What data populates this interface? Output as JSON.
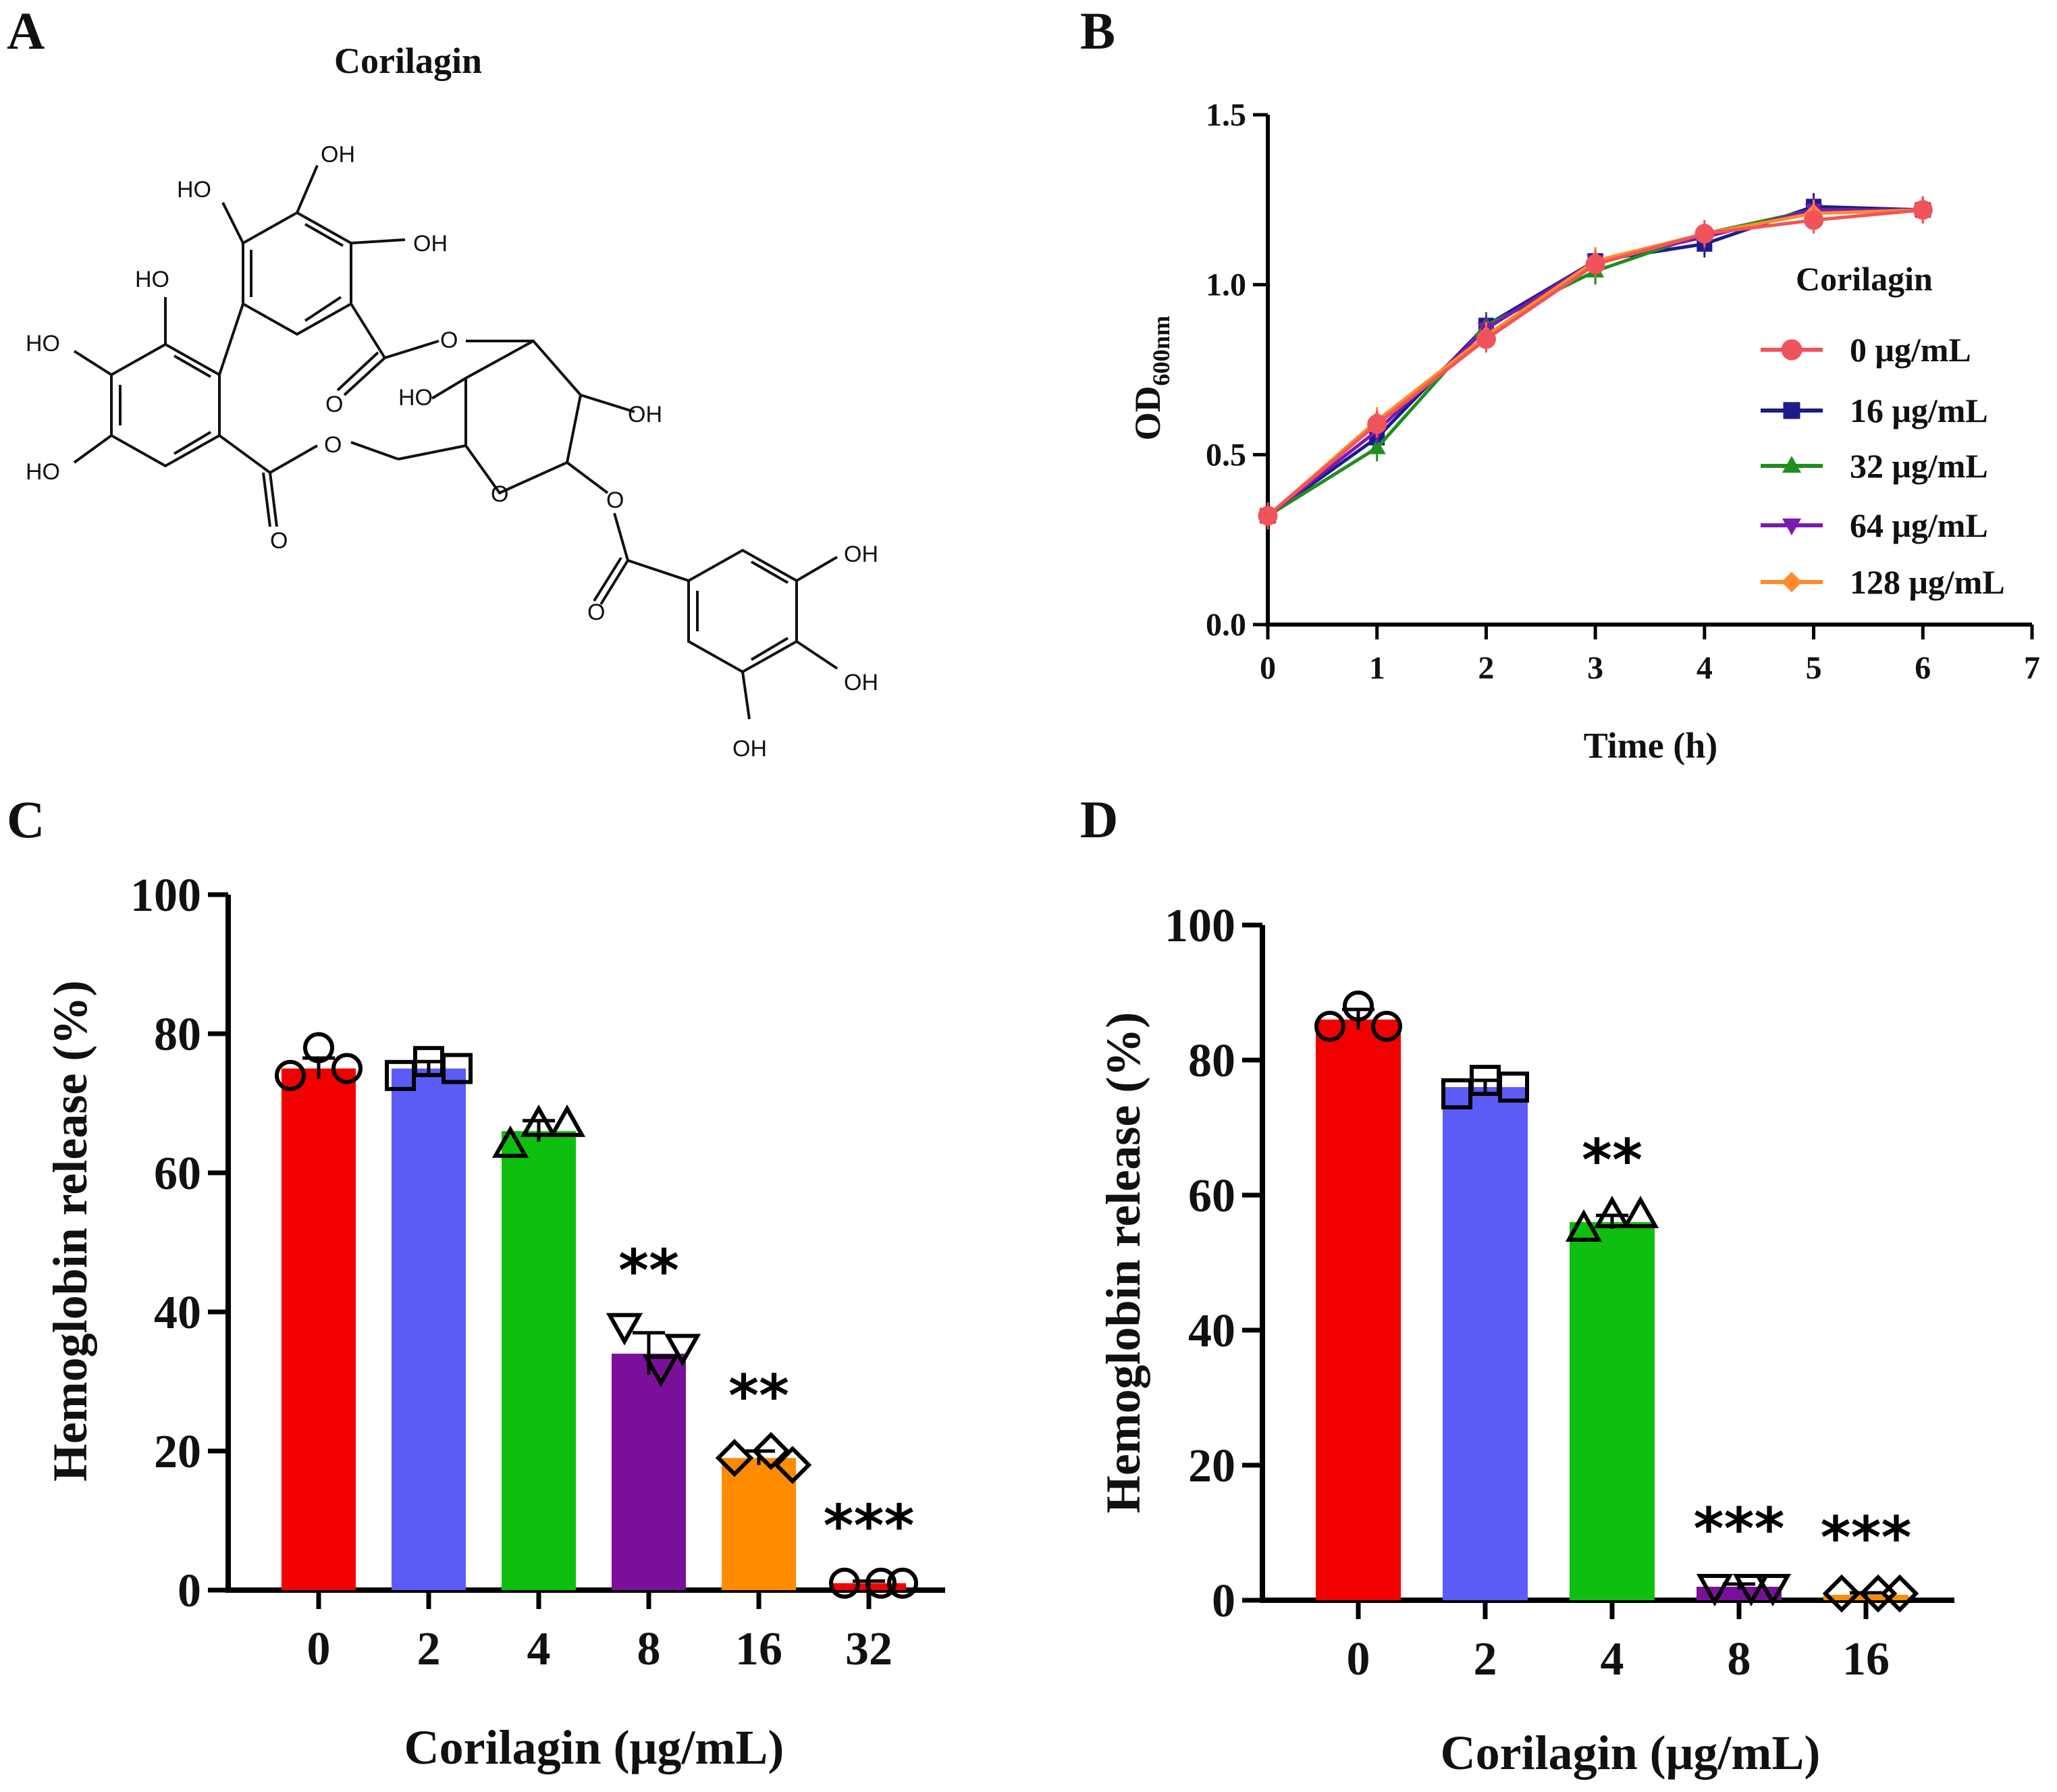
{
  "panels": {
    "a": {
      "letter": "A",
      "title": "Corilagin"
    },
    "b": {
      "letter": "B"
    },
    "c": {
      "letter": "C"
    },
    "d": {
      "letter": "D"
    }
  },
  "molecule": {
    "labels": {
      "oh_top": "OH",
      "ho_upper_left": "HO",
      "oh_upper_right": "OH",
      "ho_mid": "HO",
      "ho_left_upper": "HO",
      "ho_left_lower": "HO",
      "o_ring_link": "O",
      "o_ester_left": "O",
      "o_carbonyl_upper": "O",
      "ho_sugar": "HO",
      "oh_sugar": "OH",
      "o_ring": "O",
      "o_carbonyl_left": "O",
      "o_ester_right": "O",
      "o_carbonyl_right": "O",
      "oh_gallo_top": "OH",
      "oh_gallo_mid": "OH",
      "oh_gallo_bottom": "OH"
    }
  },
  "colors": {
    "red": "#f20000",
    "blue": "#5b5bf6",
    "green": "#0fbf0f",
    "purple": "#7a109a",
    "orange": "#ff8c00",
    "line_red": "#f0545a",
    "line_navy": "#1c1c8c",
    "line_green": "#1f8f1f",
    "line_purple": "#7a1ab0",
    "line_orange": "#ff8a2a"
  },
  "chart_data": [
    {
      "panel": "B",
      "type": "line",
      "xlabel": "Time (h)",
      "ylabel": "OD",
      "ylabel_sub": "600nm",
      "xlim": [
        0,
        7
      ],
      "ylim": [
        0,
        1.5
      ],
      "xticks": [
        "0",
        "1",
        "2",
        "3",
        "4",
        "5",
        "6",
        "7"
      ],
      "yticks": [
        "0.0",
        "0.5",
        "1.0",
        "1.5"
      ],
      "legend_title": "Corilagin",
      "legend_position": "right",
      "x": [
        0,
        1,
        2,
        3,
        4,
        5,
        6
      ],
      "series": [
        {
          "name": "0 μg/mL",
          "marker": "circle",
          "values": [
            0.32,
            0.59,
            0.84,
            1.06,
            1.15,
            1.19,
            1.22
          ]
        },
        {
          "name": "16 μg/mL",
          "marker": "square",
          "values": [
            0.32,
            0.55,
            0.88,
            1.07,
            1.12,
            1.23,
            1.22
          ]
        },
        {
          "name": "32 μg/mL",
          "marker": "triangle-up",
          "values": [
            0.32,
            0.52,
            0.88,
            1.04,
            1.15,
            1.22,
            1.22
          ]
        },
        {
          "name": "64 μg/mL",
          "marker": "triangle-down",
          "values": [
            0.32,
            0.57,
            0.87,
            1.07,
            1.14,
            1.22,
            1.22
          ]
        },
        {
          "name": "128 μg/mL",
          "marker": "diamond",
          "values": [
            0.32,
            0.6,
            0.85,
            1.07,
            1.15,
            1.21,
            1.22
          ]
        }
      ]
    },
    {
      "panel": "C",
      "type": "bar",
      "xlabel": "Corilagin (μg/mL)",
      "ylabel": "Hemoglobin release (%)",
      "ylim": [
        0,
        100
      ],
      "yticks": [
        "0",
        "20",
        "40",
        "60",
        "80",
        "100"
      ],
      "categories": [
        "0",
        "2",
        "4",
        "8",
        "16",
        "32"
      ],
      "values": [
        75,
        75,
        66,
        34,
        19,
        1
      ],
      "points": [
        [
          74,
          78,
          75
        ],
        [
          74,
          76,
          75
        ],
        [
          64,
          67,
          67
        ],
        [
          38,
          32,
          35
        ],
        [
          19,
          20,
          18
        ],
        [
          1,
          1,
          1
        ]
      ],
      "errors": [
        1.5,
        1,
        1.5,
        3,
        1,
        0.3
      ],
      "significance": [
        "",
        "",
        "",
        "**",
        "**",
        "***"
      ]
    },
    {
      "panel": "D",
      "type": "bar",
      "xlabel": "Corilagin (μg/mL)",
      "ylabel": "Hemoglobin release (%)",
      "ylim": [
        0,
        100
      ],
      "yticks": [
        "0",
        "20",
        "40",
        "60",
        "80",
        "100"
      ],
      "categories": [
        "0",
        "2",
        "4",
        "8",
        "16"
      ],
      "values": [
        86,
        76,
        56,
        2,
        0.8
      ],
      "points": [
        [
          85,
          88,
          85
        ],
        [
          75,
          77,
          76
        ],
        [
          55,
          57,
          57
        ],
        [
          2,
          2,
          2
        ],
        [
          1,
          1,
          1
        ]
      ],
      "errors": [
        1.5,
        1,
        1,
        0.4,
        0.3
      ],
      "significance": [
        "",
        "",
        "**",
        "***",
        "***"
      ]
    }
  ]
}
